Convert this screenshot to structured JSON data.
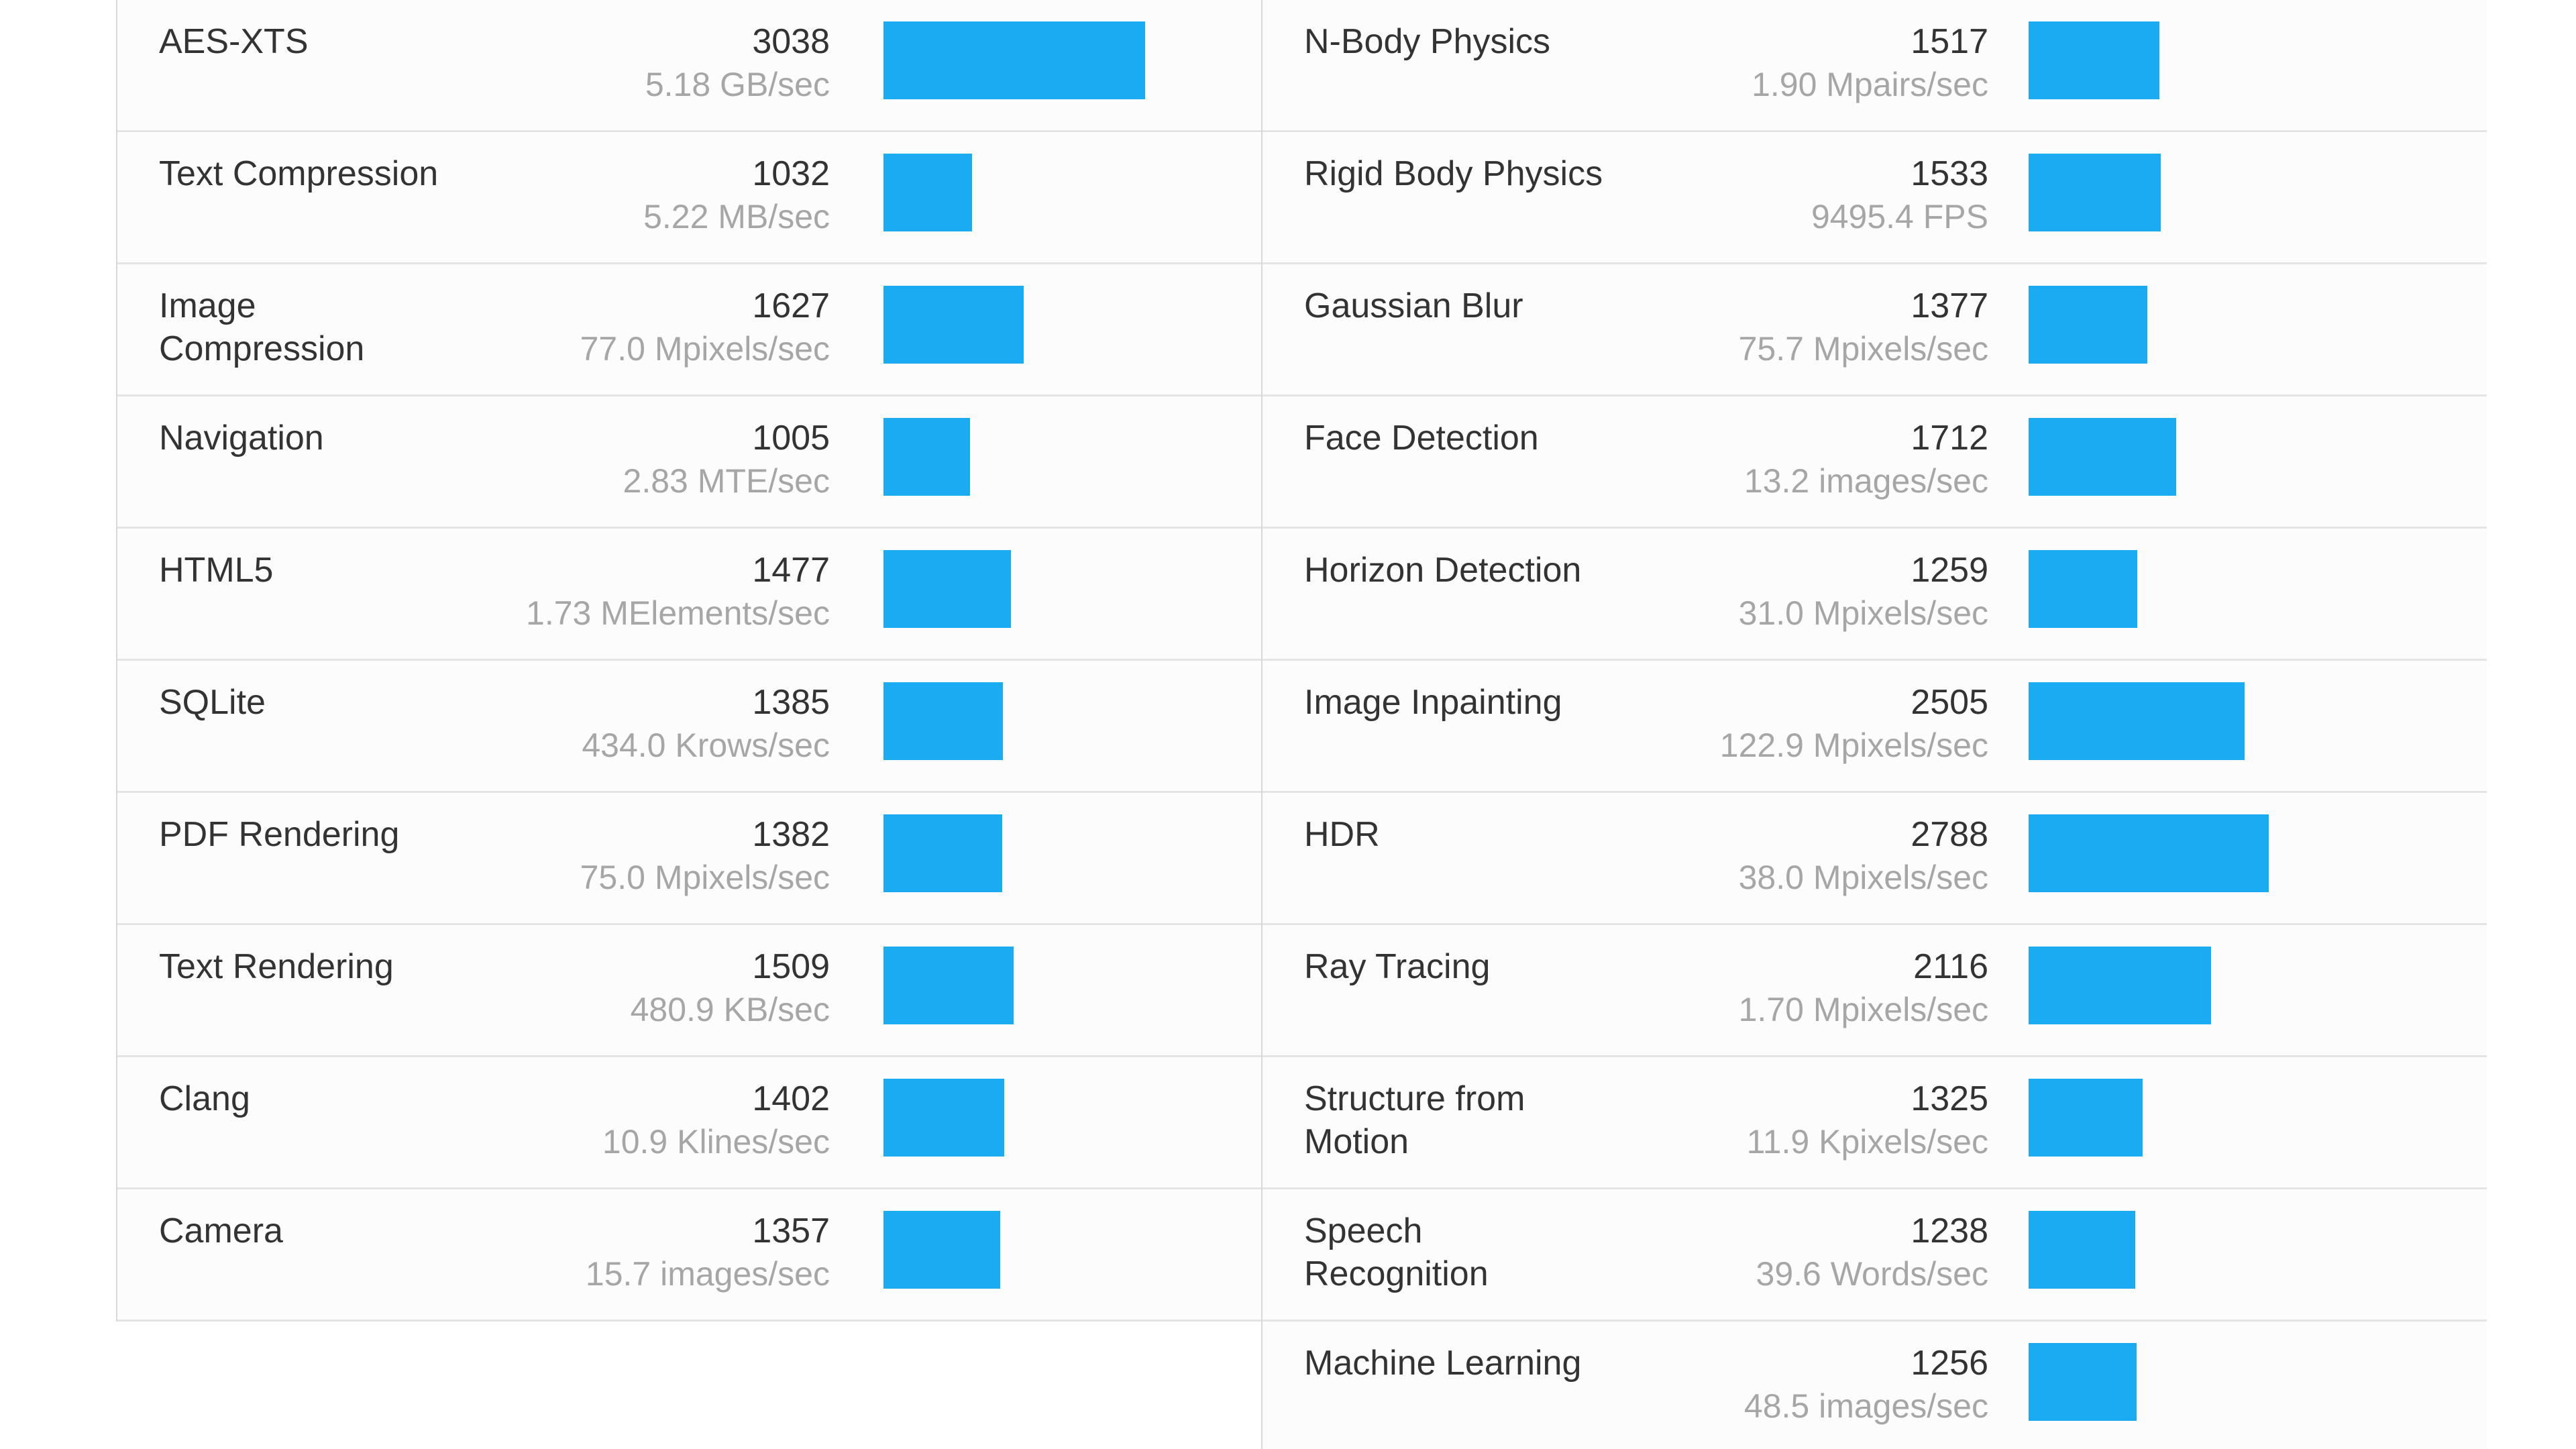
{
  "colors": {
    "bar": "#1aabf2",
    "label": "#333333",
    "unit": "#a6a6a6",
    "divider": "#e4e4e4"
  },
  "left": [
    {
      "name": "AES-XTS",
      "score": 3038,
      "rate": "5.18 GB/sec"
    },
    {
      "name": "Text Compression",
      "score": 1032,
      "rate": "5.22 MB/sec"
    },
    {
      "name": "Image\nCompression",
      "score": 1627,
      "rate": "77.0 Mpixels/sec"
    },
    {
      "name": "Navigation",
      "score": 1005,
      "rate": "2.83 MTE/sec"
    },
    {
      "name": "HTML5",
      "score": 1477,
      "rate": "1.73 MElements/sec"
    },
    {
      "name": "SQLite",
      "score": 1385,
      "rate": "434.0 Krows/sec"
    },
    {
      "name": "PDF Rendering",
      "score": 1382,
      "rate": "75.0 Mpixels/sec"
    },
    {
      "name": "Text Rendering",
      "score": 1509,
      "rate": "480.9 KB/sec"
    },
    {
      "name": "Clang",
      "score": 1402,
      "rate": "10.9 Klines/sec"
    },
    {
      "name": "Camera",
      "score": 1357,
      "rate": "15.7 images/sec"
    }
  ],
  "right": [
    {
      "name": "N-Body Physics",
      "score": 1517,
      "rate": "1.90 Mpairs/sec"
    },
    {
      "name": "Rigid Body Physics",
      "score": 1533,
      "rate": "9495.4 FPS"
    },
    {
      "name": "Gaussian Blur",
      "score": 1377,
      "rate": "75.7 Mpixels/sec"
    },
    {
      "name": "Face Detection",
      "score": 1712,
      "rate": "13.2 images/sec"
    },
    {
      "name": "Horizon Detection",
      "score": 1259,
      "rate": "31.0 Mpixels/sec"
    },
    {
      "name": "Image Inpainting",
      "score": 2505,
      "rate": "122.9 Mpixels/sec"
    },
    {
      "name": "HDR",
      "score": 2788,
      "rate": "38.0 Mpixels/sec"
    },
    {
      "name": "Ray Tracing",
      "score": 2116,
      "rate": "1.70 Mpixels/sec"
    },
    {
      "name": "Structure from\nMotion",
      "score": 1325,
      "rate": "11.9 Kpixels/sec"
    },
    {
      "name": "Speech\nRecognition",
      "score": 1238,
      "rate": "39.6 Words/sec"
    },
    {
      "name": "Machine Learning",
      "score": 1256,
      "rate": "48.5 images/sec"
    }
  ]
}
